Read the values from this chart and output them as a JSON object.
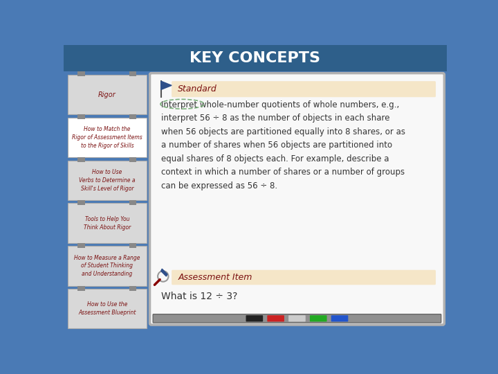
{
  "title": "KEY CONCEPTS",
  "title_color": "#ffffff",
  "title_bg_color": "#2e5f8a",
  "bg_color": "#4a7ab5",
  "left_panel_labels": [
    "Rigor",
    "How to Match the\nRigor of Assessment Items\nto the Rigor of Skills",
    "How to Use\nVerbs to Determine a\nSkill's Level of Rigor",
    "Tools to Help You\nThink About Rigor",
    "How to Measure a Range\nof Student Thinking\nand Understanding",
    "How to Use the\nAssessment Blueprint"
  ],
  "left_panel_colors": [
    "#d8d8d8",
    "#ffffff",
    "#d8d8d8",
    "#d8d8d8",
    "#d8d8d8",
    "#d8d8d8"
  ],
  "standard_label": "Standard",
  "standard_bg": "#f5e6c8",
  "standard_text": "Interpret whole-number quotients of whole numbers, e.g.,\ninterpret 56 ÷ 8 as the number of objects in each share\nwhen 56 objects are partitioned equally into 8 shares, or as\na number of shares when 56 objects are partitioned into\nequal shares of 8 objects each. For example, describe a\ncontext in which a number of shares or a number of groups\ncan be expressed as 56 ÷ 8.",
  "assessment_label": "Assessment Item",
  "assessment_bg": "#f5e6c8",
  "assessment_text": "What is 12 ÷ 3?",
  "whiteboard_bg": "#f8f8f8",
  "whiteboard_border": "#b0b0b0",
  "text_color": "#333333",
  "handwriting_color": "#7a1010",
  "flag_color": "#2e4f8a",
  "clip_color": "#888888",
  "tray_color": "#909090",
  "marker_colors": [
    "#222222",
    "#cc2222",
    "#cccccc",
    "#22aa22",
    "#2255cc"
  ]
}
